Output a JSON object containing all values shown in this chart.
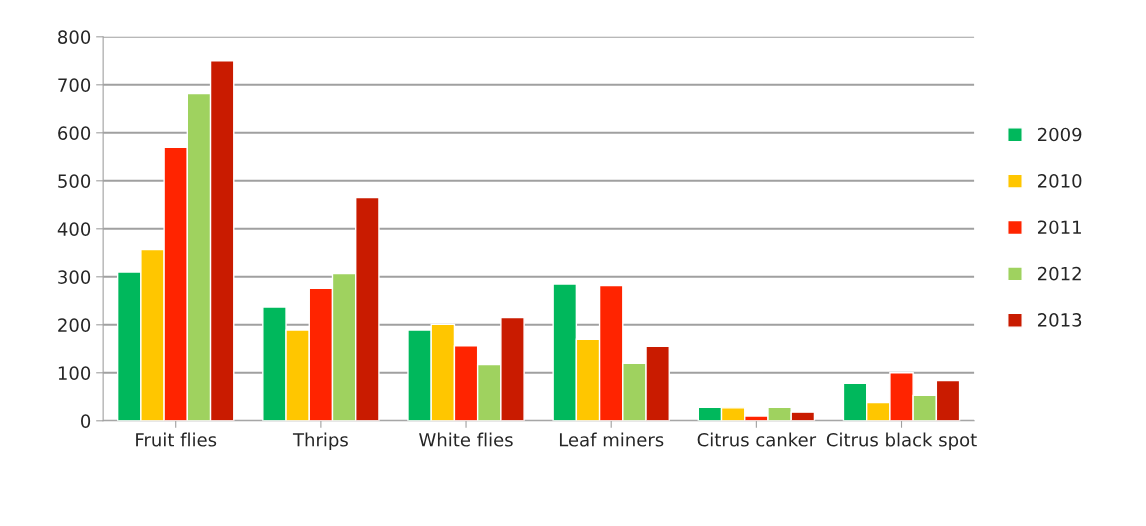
{
  "chart_data": {
    "type": "bar",
    "categories": [
      "Fruit flies",
      "Thrips",
      "White flies",
      "Leaf miners",
      "Citrus canker",
      "Citrus black spot"
    ],
    "series": [
      {
        "name": "2009",
        "color": "#00b85c",
        "values": [
          310,
          237,
          189,
          285,
          28,
          78
        ]
      },
      {
        "name": "2010",
        "color": "#ffc600",
        "values": [
          357,
          189,
          201,
          170,
          27,
          38
        ]
      },
      {
        "name": "2011",
        "color": "#ff2400",
        "values": [
          570,
          276,
          156,
          282,
          10,
          100
        ]
      },
      {
        "name": "2012",
        "color": "#9fd25f",
        "values": [
          682,
          307,
          117,
          120,
          28,
          53
        ]
      },
      {
        "name": "2013",
        "color": "#c91b00",
        "values": [
          750,
          465,
          215,
          155,
          18,
          84
        ]
      }
    ],
    "ylim": [
      0,
      800
    ],
    "yticks": [
      0,
      100,
      200,
      300,
      400,
      500,
      600,
      700,
      800
    ],
    "grid": "y",
    "legend": "right"
  }
}
